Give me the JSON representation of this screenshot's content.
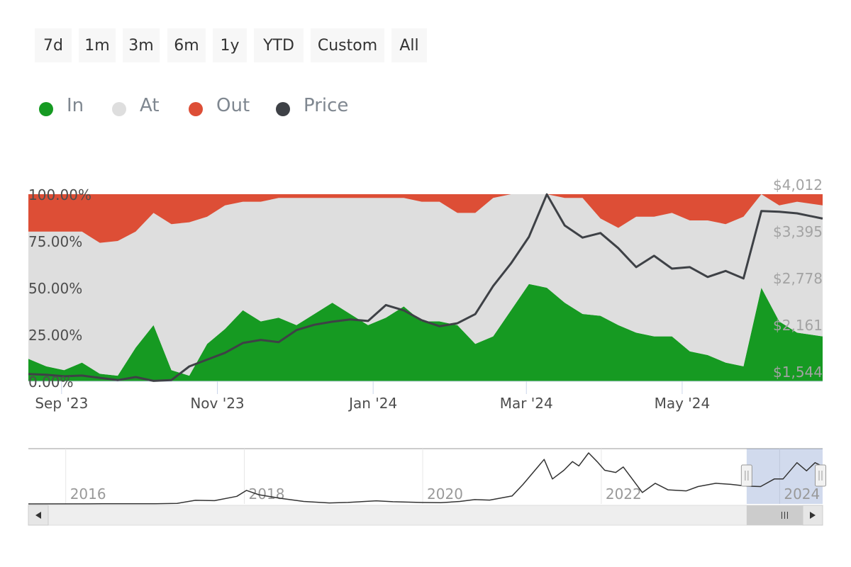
{
  "range_selector": {
    "buttons": [
      "7d",
      "1m",
      "3m",
      "6m",
      "1y",
      "YTD",
      "Custom",
      "All"
    ]
  },
  "legend": [
    {
      "label": "In",
      "color": "#169a22"
    },
    {
      "label": "At",
      "color": "#dedede"
    },
    {
      "label": "Out",
      "color": "#dd4e36"
    },
    {
      "label": "Price",
      "color": "#3e4146"
    }
  ],
  "chart_data": [
    {
      "type": "area",
      "stacking": "percent",
      "x_tick_labels": [
        "Sep '23",
        "Nov '23",
        "Jan '24",
        "Mar '24",
        "May '24"
      ],
      "x_range": [
        "2023-08-19",
        "2024-06-25"
      ],
      "x_ticks": [
        "2023-09-01",
        "2023-11-01",
        "2024-01-01",
        "2024-03-01",
        "2024-05-01"
      ],
      "left_axis": {
        "ticks": [
          "0.00%",
          "25.00%",
          "50.00%",
          "75.00%",
          "100.00%"
        ],
        "range": [
          0,
          100
        ]
      },
      "right_axis": {
        "ticks": [
          "$1,544",
          "$2,161",
          "$2,778",
          "$3,395",
          "$4,012"
        ],
        "range": [
          1544,
          4012
        ]
      },
      "x": [
        "2023-08-19",
        "2023-08-26",
        "2023-09-02",
        "2023-09-09",
        "2023-09-16",
        "2023-09-23",
        "2023-09-30",
        "2023-10-07",
        "2023-10-14",
        "2023-10-21",
        "2023-10-28",
        "2023-11-04",
        "2023-11-11",
        "2023-11-18",
        "2023-11-25",
        "2023-12-02",
        "2023-12-09",
        "2023-12-16",
        "2023-12-23",
        "2023-12-30",
        "2024-01-06",
        "2024-01-13",
        "2024-01-20",
        "2024-01-27",
        "2024-02-03",
        "2024-02-10",
        "2024-02-17",
        "2024-02-24",
        "2024-03-02",
        "2024-03-09",
        "2024-03-16",
        "2024-03-23",
        "2024-03-30",
        "2024-04-06",
        "2024-04-13",
        "2024-04-20",
        "2024-04-27",
        "2024-05-04",
        "2024-05-11",
        "2024-05-18",
        "2024-05-25",
        "2024-06-01",
        "2024-06-08",
        "2024-06-15",
        "2024-06-25"
      ],
      "series": [
        {
          "name": "In",
          "color": "#169a22",
          "values": [
            12,
            8,
            6,
            10,
            4,
            3,
            18,
            30,
            6,
            3,
            20,
            28,
            38,
            32,
            34,
            30,
            36,
            42,
            36,
            30,
            34,
            40,
            32,
            32,
            30,
            20,
            24,
            38,
            52,
            50,
            42,
            36,
            35,
            30,
            26,
            24,
            24,
            16,
            14,
            10,
            8,
            50,
            32,
            26,
            24
          ]
        },
        {
          "name": "At",
          "color": "#dedede",
          "values": [
            68,
            72,
            74,
            70,
            70,
            72,
            62,
            60,
            78,
            82,
            68,
            66,
            58,
            64,
            64,
            68,
            62,
            56,
            62,
            68,
            64,
            58,
            64,
            64,
            60,
            70,
            74,
            62,
            48,
            50,
            56,
            62,
            52,
            52,
            62,
            64,
            66,
            70,
            72,
            74,
            80,
            50,
            62,
            70,
            70
          ]
        },
        {
          "name": "Out",
          "color": "#dd4e36",
          "values": [
            20,
            20,
            20,
            20,
            26,
            25,
            20,
            10,
            16,
            15,
            12,
            6,
            4,
            4,
            2,
            2,
            2,
            2,
            2,
            2,
            2,
            2,
            4,
            4,
            10,
            10,
            2,
            0,
            0,
            0,
            2,
            2,
            13,
            18,
            12,
            12,
            10,
            14,
            14,
            16,
            12,
            0,
            6,
            4,
            6
          ]
        }
      ],
      "price": {
        "name": "Price",
        "color": "#3e4146",
        "values": [
          1640,
          1630,
          1610,
          1620,
          1590,
          1560,
          1600,
          1550,
          1560,
          1740,
          1830,
          1920,
          2050,
          2090,
          2060,
          2220,
          2290,
          2330,
          2360,
          2340,
          2550,
          2480,
          2350,
          2270,
          2310,
          2430,
          2800,
          3100,
          3450,
          4010,
          3600,
          3440,
          3500,
          3300,
          3050,
          3200,
          3030,
          3050,
          2920,
          3000,
          2900,
          3790,
          3780,
          3760,
          3690
        ]
      }
    },
    {
      "type": "line",
      "role": "navigator",
      "x_tick_labels": [
        "2016",
        "2018",
        "2020",
        "2022",
        "2024"
      ],
      "x_range": [
        "2015-08-01",
        "2024-06-25"
      ],
      "x_ticks": [
        "2016-01-01",
        "2018-01-01",
        "2020-01-01",
        "2022-01-01",
        "2024-01-01"
      ],
      "selected_range": [
        "2023-08-19",
        "2024-06-25"
      ],
      "x": [
        "2015-08-01",
        "2016-06-01",
        "2017-01-01",
        "2017-04-01",
        "2017-06-15",
        "2017-09-01",
        "2017-12-01",
        "2018-01-10",
        "2018-03-01",
        "2018-06-01",
        "2018-09-01",
        "2018-12-15",
        "2019-03-01",
        "2019-06-25",
        "2019-09-01",
        "2020-01-01",
        "2020-03-15",
        "2020-06-01",
        "2020-08-01",
        "2020-10-01",
        "2021-01-01",
        "2021-02-15",
        "2021-05-12",
        "2021-06-15",
        "2021-08-01",
        "2021-09-05",
        "2021-10-01",
        "2021-11-10",
        "2021-12-15",
        "2022-01-15",
        "2022-03-01",
        "2022-04-01",
        "2022-06-18",
        "2022-08-10",
        "2022-10-01",
        "2022-12-15",
        "2023-02-01",
        "2023-04-15",
        "2023-06-15",
        "2023-08-19",
        "2023-10-15",
        "2023-12-10",
        "2024-01-15",
        "2024-03-12",
        "2024-04-20",
        "2024-05-25",
        "2024-06-25"
      ],
      "values": [
        1,
        12,
        10,
        50,
        330,
        300,
        700,
        1250,
        850,
        500,
        230,
        90,
        140,
        290,
        200,
        130,
        110,
        230,
        400,
        350,
        730,
        1800,
        4100,
        2300,
        3100,
        3900,
        3500,
        4700,
        3900,
        3100,
        2900,
        3400,
        1050,
        1900,
        1300,
        1200,
        1600,
        1900,
        1800,
        1640,
        1600,
        2300,
        2300,
        3800,
        3050,
        3800,
        3450
      ]
    }
  ]
}
